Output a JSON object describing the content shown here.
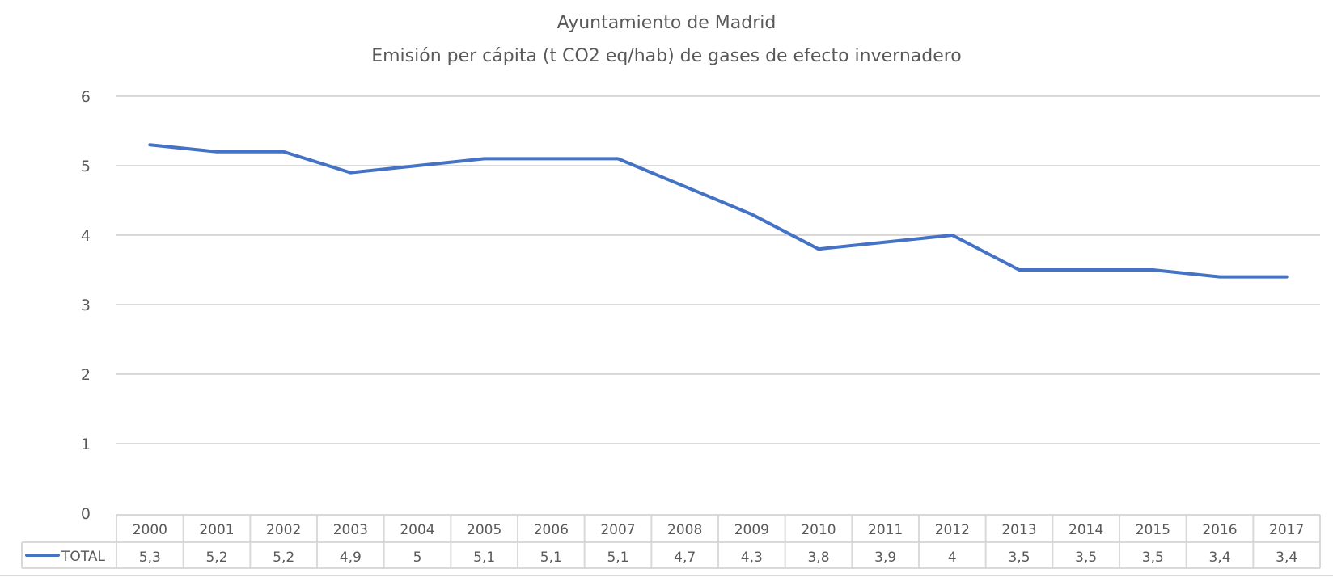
{
  "chart_data": {
    "type": "line",
    "title": "Ayuntamiento de Madrid",
    "subtitle": "Emisión per cápita (t CO2 eq/hab) de gases de efecto invernadero",
    "categories": [
      "2000",
      "2001",
      "2002",
      "2003",
      "2004",
      "2005",
      "2006",
      "2007",
      "2008",
      "2009",
      "2010",
      "2011",
      "2012",
      "2013",
      "2014",
      "2015",
      "2016",
      "2017"
    ],
    "series": [
      {
        "name": "TOTAL",
        "values": [
          5.3,
          5.2,
          5.2,
          4.9,
          5,
          5.1,
          5.1,
          5.1,
          4.7,
          4.3,
          3.8,
          3.9,
          4,
          3.5,
          3.5,
          3.5,
          3.4,
          3.4
        ],
        "labels": [
          "5,3",
          "5,2",
          "5,2",
          "4,9",
          "5",
          "5,1",
          "5,1",
          "5,1",
          "4,7",
          "4,3",
          "3,8",
          "3,9",
          "4",
          "3,5",
          "3,5",
          "3,5",
          "3,4",
          "3,4"
        ]
      }
    ],
    "yticks": [
      "0",
      "1",
      "2",
      "3",
      "4",
      "5",
      "6"
    ],
    "ylim": [
      0,
      6
    ],
    "grid": true,
    "legend": "data-table",
    "colors": {
      "line": "#4472c4",
      "grid": "#d9d9d9",
      "text": "#595959"
    }
  }
}
